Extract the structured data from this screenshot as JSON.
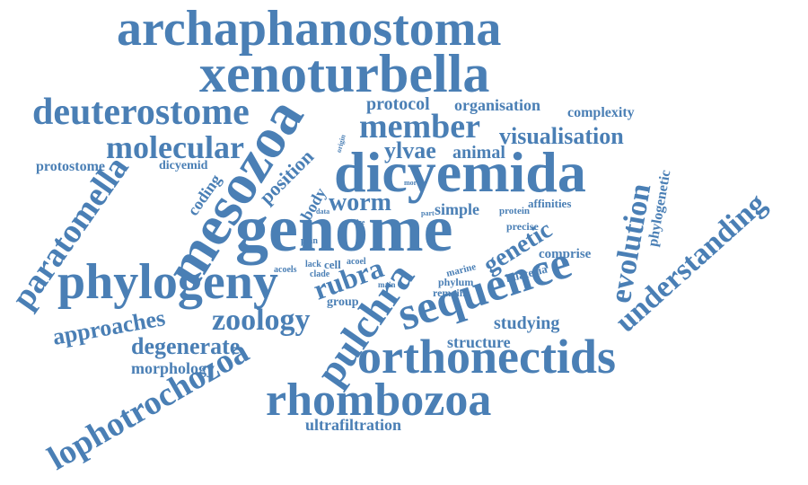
{
  "cloud": {
    "color": "#4a7fb5",
    "words": [
      "archaphanostoma",
      "xenoturbella",
      "genome",
      "dicyemida",
      "mesozoa",
      "phylogeny",
      "sequence",
      "orthonectids",
      "rhombozoa",
      "deuterostome",
      "member",
      "molecular",
      "paratomella",
      "lophotrochozoa",
      "understanding",
      "pulchra",
      "evolution",
      "zoology",
      "approaches",
      "worm",
      "rubra",
      "genetic",
      "visualisation",
      "degenerate",
      "position",
      "protocol",
      "organisation",
      "complexity",
      "ylvae",
      "animal",
      "protostome",
      "dicyemid",
      "coding",
      "body",
      "simple",
      "phylogenetic",
      "morphology",
      "structure",
      "studying",
      "ultrafiltration",
      "comprise",
      "bilateria",
      "group",
      "cell",
      "phylum",
      "remain",
      "marine",
      "affinities",
      "protein",
      "precise",
      "plan",
      "acoels",
      "lack",
      "acoel",
      "clade",
      "main",
      "data",
      "more",
      "part",
      "size",
      "origin"
    ]
  }
}
